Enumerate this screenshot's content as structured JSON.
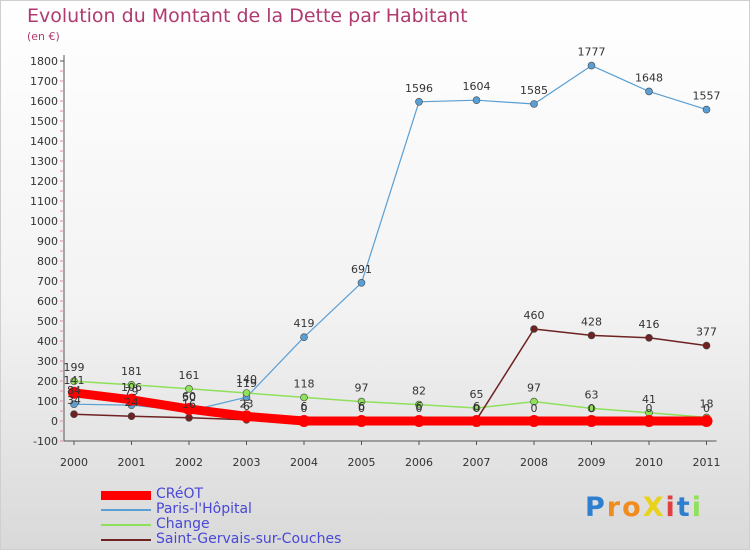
{
  "chart_data": {
    "type": "line",
    "title": "Evolution du Montant de la Dette par Habitant",
    "subtitle": "(en €)",
    "xlabel": "",
    "ylabel": "",
    "categories": [
      "2000",
      "2001",
      "2002",
      "2003",
      "2004",
      "2005",
      "2006",
      "2007",
      "2008",
      "2009",
      "2010",
      "2011"
    ],
    "ylim": [
      -100,
      1800
    ],
    "yticks": [
      "-100",
      "0",
      "100",
      "200",
      "300",
      "400",
      "500",
      "600",
      "700",
      "800",
      "900",
      "1000",
      "1100",
      "1200",
      "1300",
      "1400",
      "1500",
      "1600",
      "1700",
      "1800"
    ],
    "grid": false,
    "legend_position": "bottom-left",
    "series": [
      {
        "name": "CRéOT",
        "color": "#ff0000",
        "values": [
          141,
          106,
          60,
          23,
          0,
          0,
          0,
          0,
          0,
          0,
          0,
          0
        ],
        "labels": [
          "141",
          "106",
          "60",
          "23",
          "0",
          "0",
          "0",
          "0",
          "0",
          "0",
          "0",
          "0"
        ]
      },
      {
        "name": "Paris-l'Hôpital",
        "color": "#5a9fd4",
        "values": [
          84,
          79,
          50,
          119,
          419,
          691,
          1596,
          1604,
          1585,
          1777,
          1648,
          1557
        ],
        "labels": [
          "84",
          "79",
          "50",
          "119",
          "419",
          "691",
          "1596",
          "1604",
          "1585",
          "1777",
          "1648",
          "1557"
        ]
      },
      {
        "name": "Change",
        "color": "#8fe05a",
        "values": [
          199,
          181,
          161,
          140,
          118,
          97,
          82,
          65,
          97,
          63,
          41,
          18
        ],
        "labels": [
          "199",
          "181",
          "161",
          "140",
          "118",
          "97",
          "82",
          "65",
          "97",
          "63",
          "41",
          "18"
        ]
      },
      {
        "name": "Saint-Gervais-sur-Couches",
        "color": "#6e2222",
        "values": [
          34,
          24,
          16,
          6,
          6,
          6,
          6,
          6,
          460,
          428,
          416,
          377
        ],
        "labels": [
          "34",
          "24",
          "16",
          "6",
          "6",
          "6",
          "6",
          "6",
          "460",
          "428",
          "416",
          "377"
        ]
      }
    ]
  },
  "logo": {
    "text": "ProXiti",
    "letter_colors": [
      "#2f7fd0",
      "#f08c1e",
      "#f08c1e",
      "#e8d21c",
      "#e04040",
      "#2f7fd0",
      "#8fe05a"
    ]
  }
}
